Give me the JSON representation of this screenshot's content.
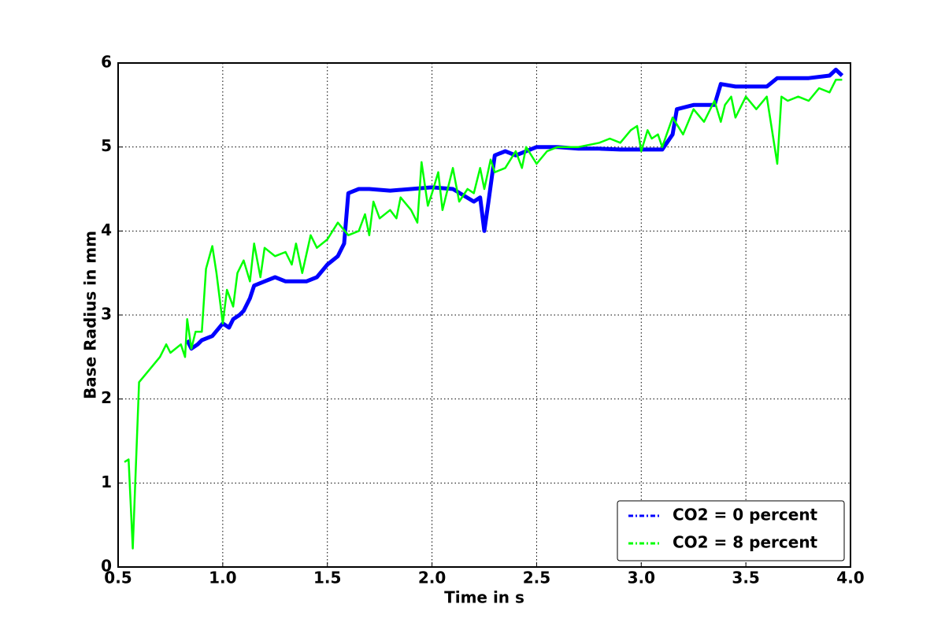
{
  "chart_data": {
    "type": "line",
    "xlabel": "Time in s",
    "ylabel": "Base Radius in mm",
    "xlim": [
      0.5,
      4.0
    ],
    "ylim": [
      0,
      6
    ],
    "xticks": [
      0.5,
      {
        "value": 1,
        "label": "1.0"
      },
      1.5,
      {
        "value": 2,
        "label": "2.0"
      },
      2.5,
      {
        "value": 3,
        "label": "3.0"
      },
      3.5,
      {
        "value": 4,
        "label": "4.0"
      }
    ],
    "yticks": [
      0,
      1,
      2,
      3,
      4,
      5,
      6
    ],
    "grid": true,
    "legend": "lower right",
    "series": [
      {
        "name": "CO2 = 0 percent",
        "color": "#0000ff",
        "width": 5,
        "x": [
          0.83,
          0.85,
          0.88,
          0.9,
          0.95,
          1.0,
          1.03,
          1.05,
          1.08,
          1.1,
          1.13,
          1.15,
          1.2,
          1.25,
          1.3,
          1.35,
          1.4,
          1.45,
          1.5,
          1.55,
          1.58,
          1.6,
          1.65,
          1.7,
          1.8,
          1.9,
          2.0,
          2.1,
          2.2,
          2.23,
          2.25,
          2.27,
          2.3,
          2.35,
          2.4,
          2.5,
          2.6,
          2.7,
          2.8,
          2.9,
          3.0,
          3.1,
          3.15,
          3.17,
          3.25,
          3.35,
          3.38,
          3.45,
          3.6,
          3.65,
          3.8,
          3.9,
          3.93,
          3.96
        ],
        "values": [
          2.7,
          2.6,
          2.65,
          2.7,
          2.75,
          2.9,
          2.85,
          2.95,
          3.0,
          3.05,
          3.2,
          3.35,
          3.4,
          3.45,
          3.4,
          3.4,
          3.4,
          3.45,
          3.6,
          3.7,
          3.85,
          4.45,
          4.5,
          4.5,
          4.48,
          4.5,
          4.52,
          4.5,
          4.35,
          4.4,
          4.0,
          4.35,
          4.9,
          4.95,
          4.9,
          5.0,
          5.0,
          4.98,
          4.98,
          4.97,
          4.97,
          4.97,
          5.15,
          5.45,
          5.5,
          5.5,
          5.75,
          5.72,
          5.72,
          5.82,
          5.82,
          5.85,
          5.92,
          5.85
        ]
      },
      {
        "name": "CO2 = 8 percent",
        "color": "#00ff00",
        "width": 2.5,
        "x": [
          0.53,
          0.55,
          0.57,
          0.6,
          0.7,
          0.73,
          0.75,
          0.8,
          0.82,
          0.83,
          0.85,
          0.87,
          0.9,
          0.92,
          0.95,
          0.97,
          1.0,
          1.02,
          1.05,
          1.07,
          1.1,
          1.13,
          1.15,
          1.18,
          1.2,
          1.25,
          1.3,
          1.33,
          1.35,
          1.38,
          1.42,
          1.45,
          1.5,
          1.55,
          1.6,
          1.65,
          1.68,
          1.7,
          1.72,
          1.75,
          1.8,
          1.83,
          1.85,
          1.9,
          1.93,
          1.95,
          1.98,
          2.0,
          2.03,
          2.05,
          2.08,
          2.1,
          2.13,
          2.17,
          2.2,
          2.23,
          2.25,
          2.28,
          2.3,
          2.35,
          2.4,
          2.43,
          2.45,
          2.5,
          2.55,
          2.6,
          2.7,
          2.8,
          2.85,
          2.9,
          2.95,
          2.98,
          3.0,
          3.03,
          3.05,
          3.08,
          3.1,
          3.15,
          3.2,
          3.25,
          3.3,
          3.35,
          3.38,
          3.4,
          3.43,
          3.45,
          3.5,
          3.55,
          3.6,
          3.65,
          3.67,
          3.7,
          3.75,
          3.8,
          3.85,
          3.9,
          3.93,
          3.96
        ],
        "values": [
          1.25,
          1.28,
          0.22,
          2.2,
          2.5,
          2.65,
          2.55,
          2.65,
          2.5,
          2.95,
          2.6,
          2.8,
          2.8,
          3.55,
          3.82,
          3.5,
          2.9,
          3.3,
          3.1,
          3.5,
          3.65,
          3.4,
          3.85,
          3.45,
          3.8,
          3.7,
          3.75,
          3.6,
          3.85,
          3.5,
          3.95,
          3.8,
          3.9,
          4.1,
          3.95,
          4.0,
          4.2,
          3.95,
          4.35,
          4.15,
          4.25,
          4.15,
          4.4,
          4.25,
          4.1,
          4.82,
          4.3,
          4.45,
          4.7,
          4.25,
          4.55,
          4.75,
          4.35,
          4.5,
          4.45,
          4.75,
          4.5,
          4.85,
          4.7,
          4.75,
          4.95,
          4.75,
          5.0,
          4.8,
          4.95,
          5.0,
          5.0,
          5.05,
          5.1,
          5.05,
          5.2,
          5.25,
          4.95,
          5.2,
          5.1,
          5.15,
          5.0,
          5.35,
          5.15,
          5.45,
          5.3,
          5.55,
          5.3,
          5.5,
          5.6,
          5.35,
          5.6,
          5.45,
          5.6,
          4.8,
          5.6,
          5.55,
          5.6,
          5.55,
          5.7,
          5.65,
          5.8,
          5.8
        ]
      }
    ]
  }
}
